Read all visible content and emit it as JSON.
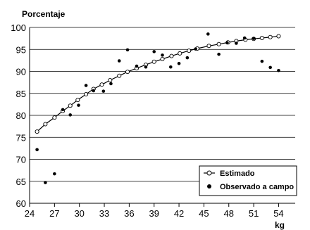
{
  "chart_data": {
    "type": "scatter",
    "title": "Porcentaje",
    "xlabel": "kg",
    "ylabel": "",
    "xlim": [
      24,
      56
    ],
    "ylim": [
      60,
      100
    ],
    "x_ticks": [
      24,
      27,
      30,
      33,
      36,
      39,
      42,
      45,
      48,
      51,
      54
    ],
    "y_ticks": [
      60,
      65,
      70,
      75,
      80,
      85,
      90,
      95,
      100
    ],
    "grid": "horizontal",
    "legend_position": "bottom-right",
    "series": [
      {
        "name": "Estimado",
        "style": "line-with-open-circles",
        "x": [
          24.9,
          25.9,
          27.0,
          28.0,
          28.9,
          29.8,
          30.8,
          31.7,
          32.7,
          33.7,
          34.8,
          35.8,
          36.9,
          38.0,
          39.0,
          40.0,
          41.1,
          42.1,
          43.2,
          44.2,
          45.6,
          46.8,
          47.9,
          48.9,
          50.0,
          51.0,
          52.0,
          53.0,
          54.0
        ],
        "y": [
          76.3,
          78.0,
          79.5,
          81.0,
          82.2,
          83.5,
          84.8,
          86.0,
          87.0,
          88.0,
          89.0,
          89.9,
          90.7,
          91.5,
          92.2,
          92.8,
          93.5,
          94.1,
          94.7,
          95.2,
          95.8,
          96.2,
          96.6,
          96.9,
          97.2,
          97.4,
          97.6,
          97.8,
          98.0
        ]
      },
      {
        "name": "Observado a campo",
        "style": "filled-dots",
        "x": [
          24.9,
          25.9,
          27.0,
          28.0,
          28.9,
          29.9,
          30.8,
          31.7,
          32.9,
          33.8,
          34.8,
          35.8,
          36.9,
          38.0,
          39.0,
          40.0,
          41.0,
          42.0,
          43.0,
          44.0,
          45.5,
          46.8,
          47.8,
          48.9,
          49.9,
          51.0,
          52.0,
          53.0,
          54.0
        ],
        "y": [
          72.2,
          64.7,
          66.7,
          81.3,
          80.1,
          82.3,
          86.8,
          85.6,
          85.5,
          87.2,
          92.4,
          94.9,
          91.2,
          91.0,
          94.5,
          93.7,
          91.0,
          91.8,
          93.1,
          95.1,
          98.5,
          93.9,
          96.5,
          96.4,
          97.6,
          97.5,
          92.3,
          90.9,
          90.2
        ]
      }
    ]
  }
}
